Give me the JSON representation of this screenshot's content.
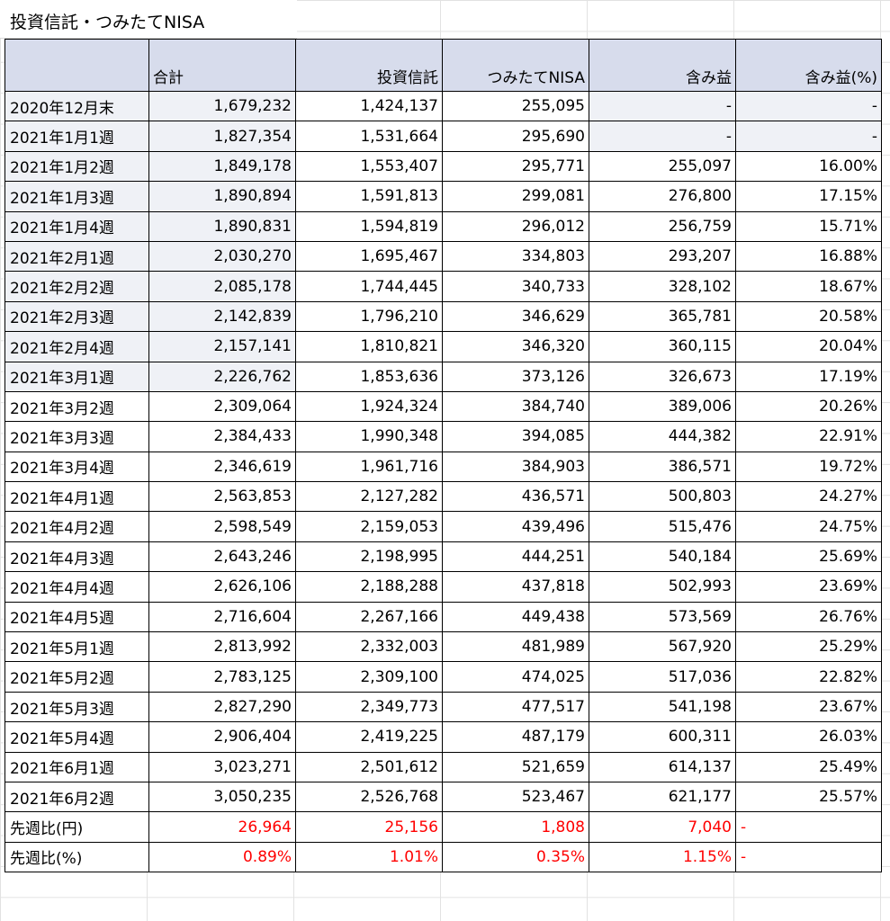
{
  "title": "投資信託・つみたてNISA",
  "headers": [
    "",
    "合計",
    "投資信託",
    "つみたてNISA",
    "含み益",
    "含み益(%)"
  ],
  "rows": [
    [
      "2020年12月末",
      "1,679,232",
      "1,424,137",
      "255,095",
      "-",
      "-"
    ],
    [
      "2021年1月1週",
      "1,827,354",
      "1,531,664",
      "295,690",
      "-",
      "-"
    ],
    [
      "2021年1月2週",
      "1,849,178",
      "1,553,407",
      "295,771",
      "255,097",
      "16.00%"
    ],
    [
      "2021年1月3週",
      "1,890,894",
      "1,591,813",
      "299,081",
      "276,800",
      "17.15%"
    ],
    [
      "2021年1月4週",
      "1,890,831",
      "1,594,819",
      "296,012",
      "256,759",
      "15.71%"
    ],
    [
      "2021年2月1週",
      "2,030,270",
      "1,695,467",
      "334,803",
      "293,207",
      "16.88%"
    ],
    [
      "2021年2月2週",
      "2,085,178",
      "1,744,445",
      "340,733",
      "328,102",
      "18.67%"
    ],
    [
      "2021年2月3週",
      "2,142,839",
      "1,796,210",
      "346,629",
      "365,781",
      "20.58%"
    ],
    [
      "2021年2月4週",
      "2,157,141",
      "1,810,821",
      "346,320",
      "360,115",
      "20.04%"
    ],
    [
      "2021年3月1週",
      "2,226,762",
      "1,853,636",
      "373,126",
      "326,673",
      "17.19%"
    ],
    [
      "2021年3月2週",
      "2,309,064",
      "1,924,324",
      "384,740",
      "389,006",
      "20.26%"
    ],
    [
      "2021年3月3週",
      "2,384,433",
      "1,990,348",
      "394,085",
      "444,382",
      "22.91%"
    ],
    [
      "2021年3月4週",
      "2,346,619",
      "1,961,716",
      "384,903",
      "386,571",
      "19.72%"
    ],
    [
      "2021年4月1週",
      "2,563,853",
      "2,127,282",
      "436,571",
      "500,803",
      "24.27%"
    ],
    [
      "2021年4月2週",
      "2,598,549",
      "2,159,053",
      "439,496",
      "515,476",
      "24.75%"
    ],
    [
      "2021年4月3週",
      "2,643,246",
      "2,198,995",
      "444,251",
      "540,184",
      "25.69%"
    ],
    [
      "2021年4月4週",
      "2,626,106",
      "2,188,288",
      "437,818",
      "502,993",
      "23.69%"
    ],
    [
      "2021年4月5週",
      "2,716,604",
      "2,267,166",
      "449,438",
      "573,569",
      "26.76%"
    ],
    [
      "2021年5月1週",
      "2,813,992",
      "2,332,003",
      "481,989",
      "567,920",
      "25.29%"
    ],
    [
      "2021年5月2週",
      "2,783,125",
      "2,309,100",
      "474,025",
      "517,036",
      "22.82%"
    ],
    [
      "2021年5月3週",
      "2,827,290",
      "2,349,773",
      "477,517",
      "541,198",
      "23.67%"
    ],
    [
      "2021年5月4週",
      "2,906,404",
      "2,419,225",
      "487,179",
      "600,311",
      "26.03%"
    ],
    [
      "2021年6月1週",
      "3,023,271",
      "2,501,612",
      "521,659",
      "614,137",
      "25.49%"
    ],
    [
      "2021年6月2週",
      "3,050,235",
      "2,526,768",
      "523,467",
      "621,177",
      "25.57%"
    ]
  ],
  "summary": [
    [
      "先週比(円)",
      "26,964",
      "25,156",
      "1,808",
      "7,040",
      "-"
    ],
    [
      "先週比(%)",
      "0.89%",
      "1.01%",
      "0.35%",
      "1.15%",
      "-"
    ]
  ],
  "colors": {
    "header_bg": "#d7dcec",
    "shaded_cell": "#eff1f6",
    "diff_text": "#ff0000"
  }
}
